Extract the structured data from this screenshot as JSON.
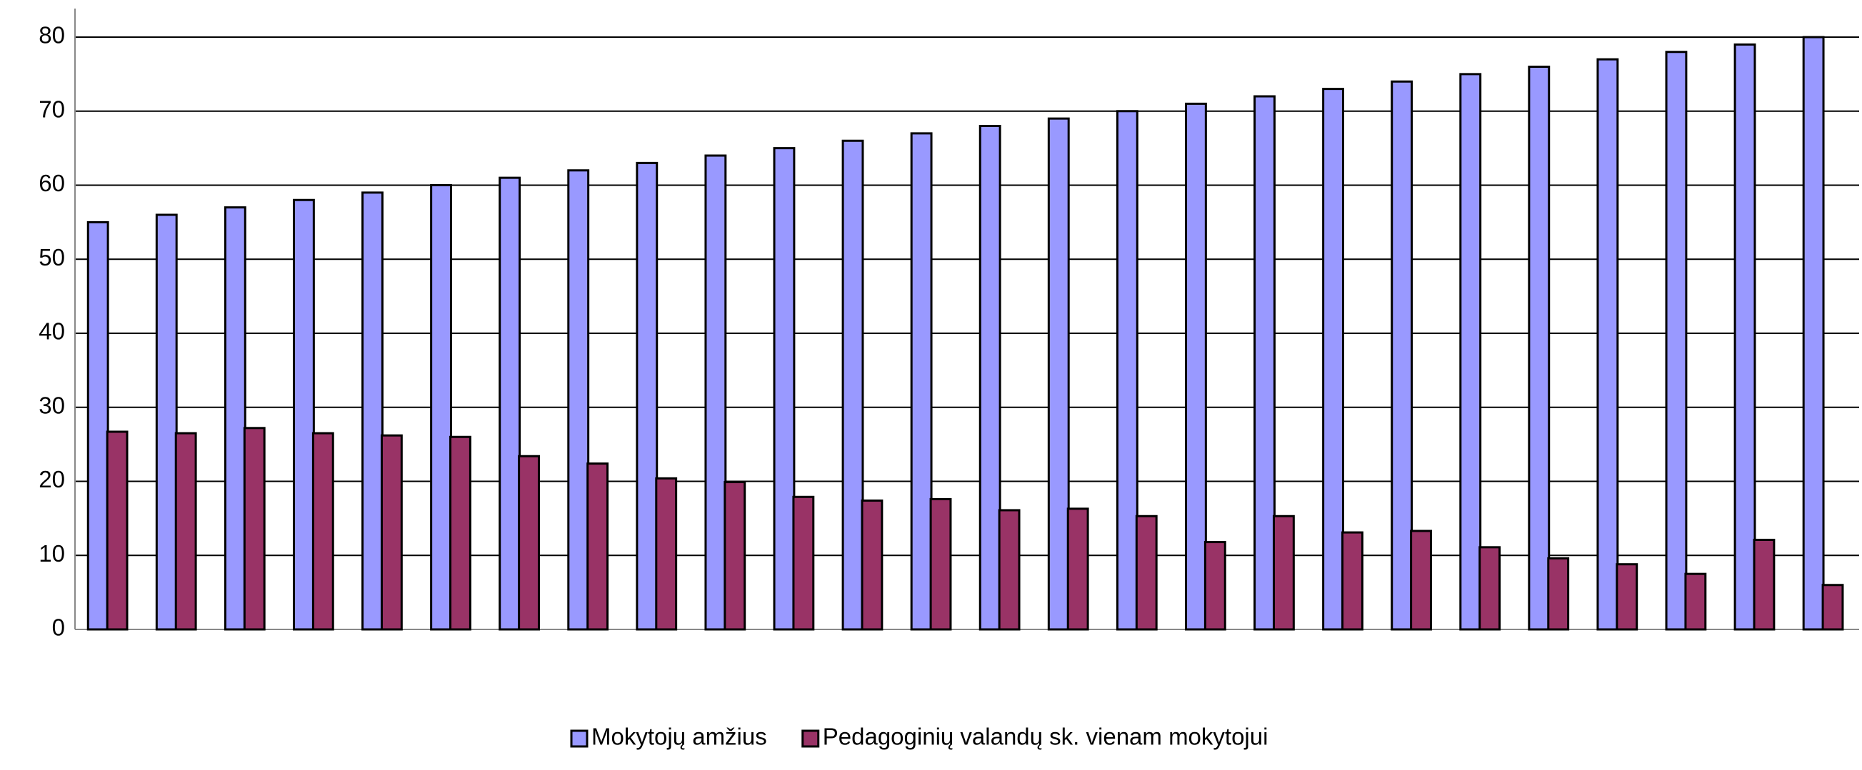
{
  "chart_data": {
    "type": "bar",
    "categories": [
      null,
      null,
      null,
      null,
      null,
      null,
      null,
      null,
      null,
      null,
      null,
      null,
      null,
      null,
      null,
      null,
      null,
      null,
      null,
      null,
      null,
      null,
      null,
      null,
      null,
      null
    ],
    "series": [
      {
        "name": "Mokytojų amžius",
        "color": "#9999ff",
        "values": [
          55,
          56,
          57,
          58,
          59,
          60,
          61,
          62,
          63,
          64,
          65,
          66,
          67,
          68,
          69,
          70,
          71,
          72,
          73,
          74,
          75,
          76,
          77,
          78,
          79,
          80
        ]
      },
      {
        "name": "Pedagoginių valandų sk. vienam mokytojui",
        "color": "#993366",
        "values": [
          26.7,
          26.5,
          27.2,
          26.5,
          26.2,
          26,
          23.4,
          22.4,
          20.4,
          19.9,
          17.9,
          17.4,
          17.6,
          16.1,
          16.3,
          15.3,
          11.8,
          15.3,
          13.1,
          13.3,
          11.1,
          9.6,
          8.8,
          7.5,
          12.1,
          6
        ]
      }
    ],
    "ylim": [
      0,
      80
    ],
    "yticks": [
      0,
      10,
      20,
      30,
      40,
      50,
      60,
      70,
      80
    ],
    "grid": true,
    "legend": "bottom"
  }
}
